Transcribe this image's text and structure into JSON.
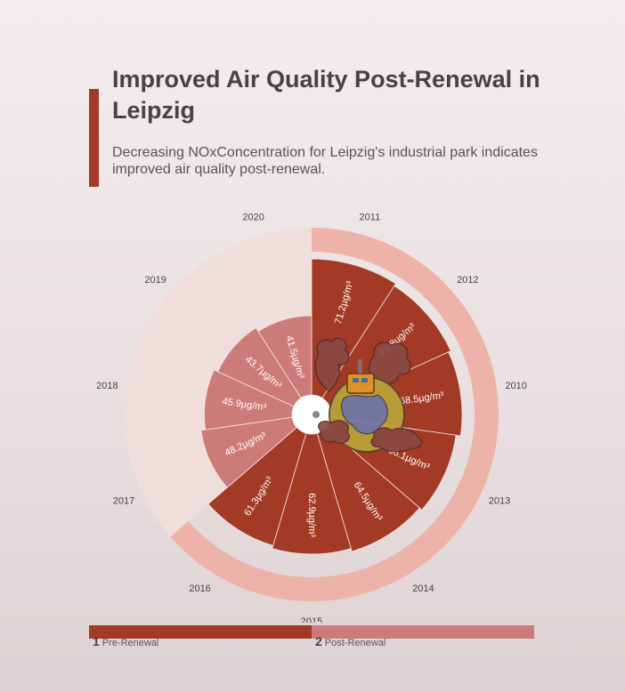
{
  "title": "Improved Air Quality Post-Renewal in Leipzig",
  "subtitle": "Decreasing NOxConcentration for Leipzig's industrial park indicates improved air quality post-renewal.",
  "colors": {
    "pre": "#a33a25",
    "post": "#cd7b78",
    "pre_ring": "#eeb3a8",
    "post_ring": "#f0dedd",
    "accent": "#a33a25"
  },
  "legend": [
    {
      "number": "1",
      "label": "Pre-Renewal"
    },
    {
      "number": "2",
      "label": "Post-Renewal"
    }
  ],
  "chart_data": {
    "type": "polar-bar",
    "unit": "µg/m³",
    "rmax": 75,
    "categories": [
      "2011",
      "2012",
      "2010",
      "2013",
      "2014",
      "2015",
      "2016",
      "2017",
      "2018",
      "2019",
      "2020"
    ],
    "values": [
      71.2,
      69.8,
      68.5,
      66.1,
      64.5,
      62.9,
      61.3,
      48.2,
      45.9,
      43.7,
      41.5
    ],
    "data_labels": [
      "71.2µg/m³",
      "69.8µg/m³",
      "68.5µg/m³",
      "66.1µg/m³",
      "64.5µg/m³",
      "62.9µg/m³",
      "61.3µg/m³",
      "48.2µg/m³",
      "45.9µg/m³",
      "43.7µg/m³",
      "41.5µg/m³"
    ],
    "group": [
      "pre",
      "pre",
      "pre",
      "pre",
      "pre",
      "pre",
      "pre",
      "post",
      "post",
      "post",
      "post"
    ],
    "icon": "factory-globe-icon"
  }
}
